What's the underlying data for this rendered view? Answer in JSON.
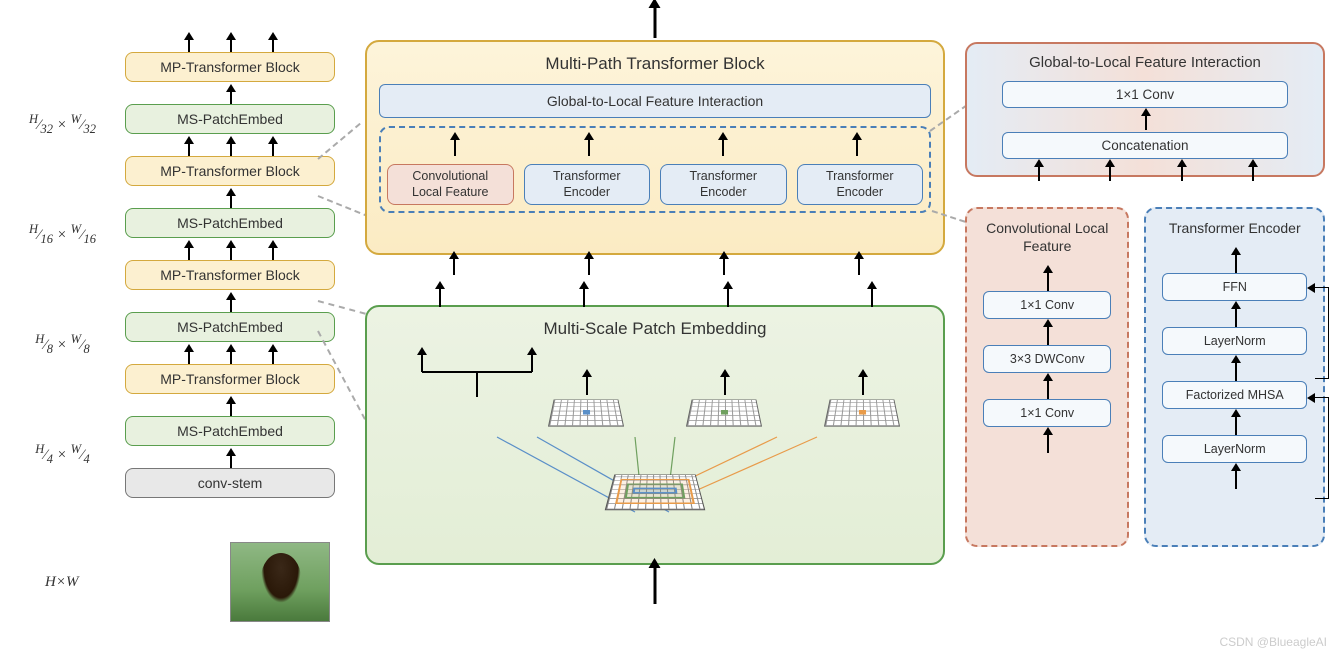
{
  "left_stack": {
    "blocks": [
      {
        "type": "yellow",
        "label": "MP-Transformer Block",
        "arrows": 3
      },
      {
        "type": "green",
        "label": "MS-PatchEmbed",
        "arrows": 1,
        "dim": "H/32 × W/32",
        "dim_html": "<span class='math'><sup>H</sup>&frasl;<sub>32</sub> × <sup>W</sup>&frasl;<sub>32</sub></span>"
      },
      {
        "type": "yellow",
        "label": "MP-Transformer Block",
        "arrows": 3
      },
      {
        "type": "green",
        "label": "MS-PatchEmbed",
        "arrows": 1,
        "dim": "H/16 × W/16",
        "dim_html": "<span class='math'><sup>H</sup>&frasl;<sub>16</sub> × <sup>W</sup>&frasl;<sub>16</sub></span>"
      },
      {
        "type": "yellow",
        "label": "MP-Transformer Block",
        "arrows": 3
      },
      {
        "type": "green",
        "label": "MS-PatchEmbed",
        "arrows": 1,
        "dim": "H/8 × W/8",
        "dim_html": "<span class='math'><sup>H</sup>&frasl;<sub>8</sub> × <sup>W</sup>&frasl;<sub>8</sub></span>"
      },
      {
        "type": "yellow",
        "label": "MP-Transformer Block",
        "arrows": 3
      },
      {
        "type": "green",
        "label": "MS-PatchEmbed",
        "arrows": 1,
        "dim": "H/4 × W/4",
        "dim_html": "<span class='math'><sup>H</sup>&frasl;<sub>4</sub> × <sup>W</sup>&frasl;<sub>4</sub></span>"
      },
      {
        "type": "gray",
        "label": "conv-stem",
        "arrows": 1
      }
    ],
    "input_dim": "H×W",
    "input_dim_html": "<span class='math'>H×W</span>"
  },
  "mpt_block": {
    "title": "Multi-Path Transformer Block",
    "glf_label": "Global-to-Local Feature Interaction",
    "paths": [
      {
        "type": "red",
        "label": "Convolutional Local Feature"
      },
      {
        "type": "blue",
        "label": "Transformer Encoder"
      },
      {
        "type": "blue",
        "label": "Transformer Encoder"
      },
      {
        "type": "blue",
        "label": "Transformer Encoder"
      }
    ]
  },
  "mspe_block": {
    "title": "Multi-Scale Patch Embedding",
    "grids": [
      {
        "color": "#5a8fc8"
      },
      {
        "color": "#6fa05f"
      },
      {
        "color": "#e89b4a"
      }
    ]
  },
  "glf_detail": {
    "title": "Global-to-Local Feature Interaction",
    "conv": "1×1 Conv",
    "concat": "Concatenation",
    "num_inputs": 4
  },
  "clf_detail": {
    "title": "Convolutional Local Feature",
    "blocks": [
      "1×1  Conv",
      "3×3 DWConv",
      "1×1 Conv"
    ]
  },
  "te_detail": {
    "title": "Transformer Encoder",
    "blocks": [
      "FFN",
      "LayerNorm",
      "Factorized MHSA",
      "LayerNorm"
    ]
  },
  "colors": {
    "green_border": "#5a9e4e",
    "green_bg": "#e8f1df",
    "yellow_border": "#d4a93e",
    "yellow_bg": "#fcf0d0",
    "gray_border": "#777",
    "gray_bg": "#e8e8e8",
    "blue_border": "#4a7fb8",
    "blue_bg": "#e4ecf5",
    "red_border": "#c77860",
    "red_bg": "#f4e0d8"
  },
  "watermark": "CSDN @BlueagleAI"
}
